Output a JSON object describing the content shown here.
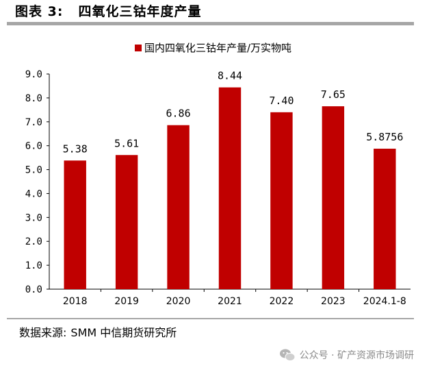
{
  "figure": {
    "label": "图表 3:",
    "title": "四氧化三钴年度产量"
  },
  "source": {
    "label": "数据来源:",
    "text": "SMM 中信期货研究所"
  },
  "watermark": {
    "text": "公众号 · 矿产资源市场调研"
  },
  "chart_data": {
    "type": "bar",
    "title": "",
    "legend": [
      "国内四氧化三钴年产量/万实物吨"
    ],
    "legend_position": "top-center",
    "categories": [
      "2018",
      "2019",
      "2020",
      "2021",
      "2022",
      "2023",
      "2024.1-8"
    ],
    "series": [
      {
        "name": "国内四氧化三钴年产量/万实物吨",
        "values": [
          5.38,
          5.61,
          6.86,
          8.44,
          7.4,
          7.65,
          5.8756
        ],
        "labels": [
          "5.38",
          "5.61",
          "6.86",
          "8.44",
          "7.40",
          "7.65",
          "5.8756"
        ],
        "color": "#c00000"
      }
    ],
    "xlabel": "",
    "ylabel": "",
    "ylim": [
      0,
      9
    ],
    "yticks": [
      "0.0",
      "1.0",
      "2.0",
      "3.0",
      "4.0",
      "5.0",
      "6.0",
      "7.0",
      "8.0",
      "9.0"
    ],
    "grid": false
  }
}
